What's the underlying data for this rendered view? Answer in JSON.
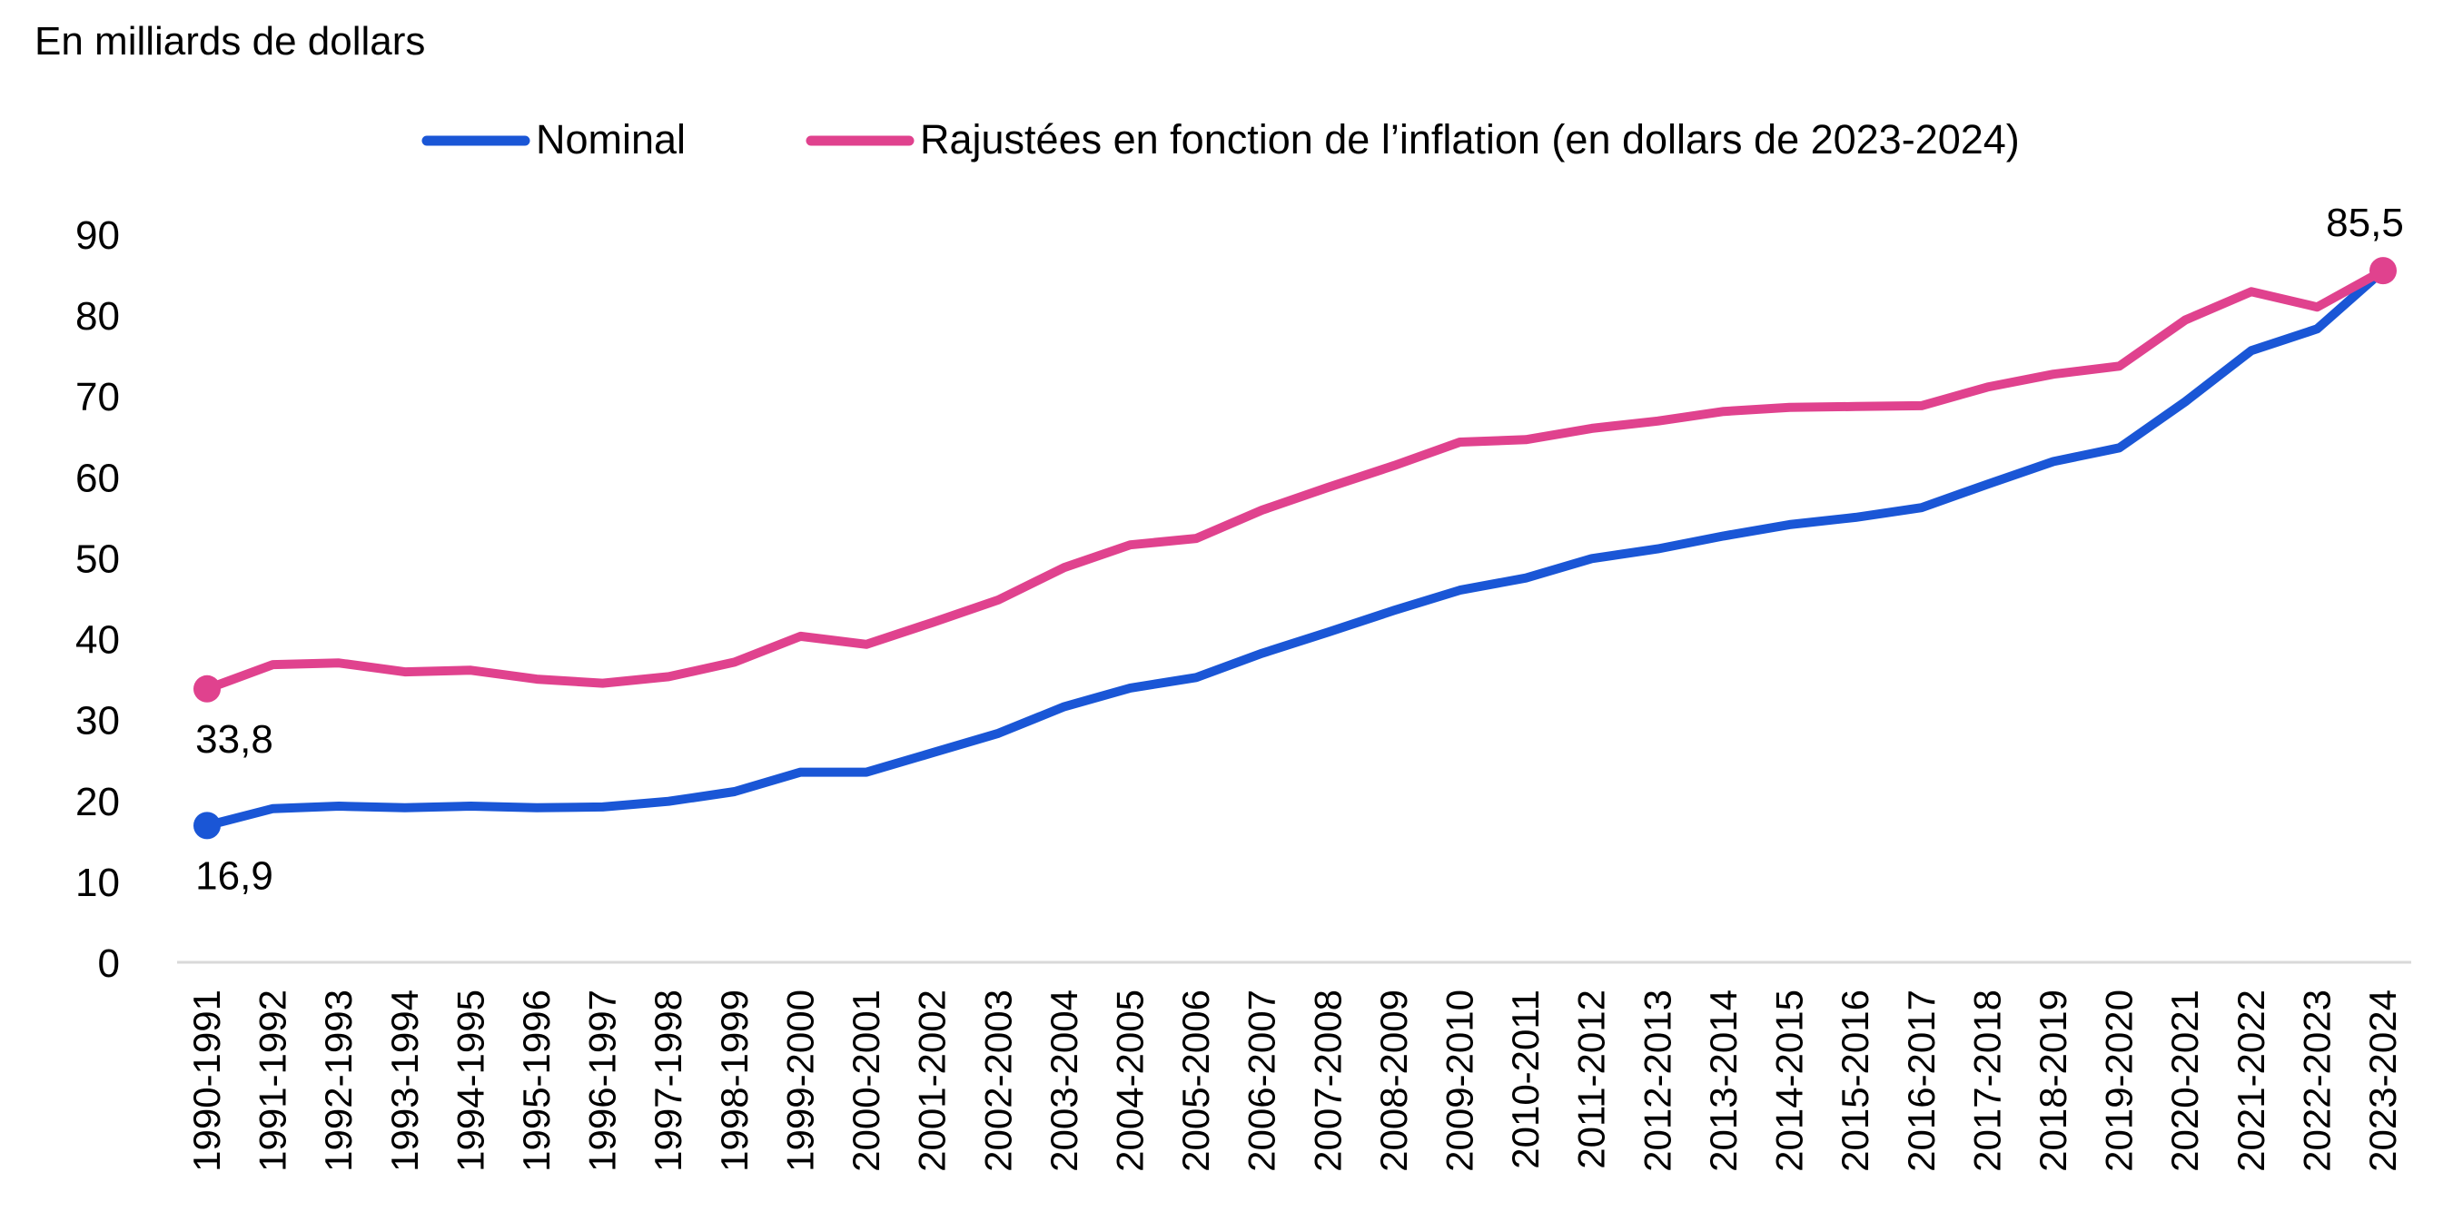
{
  "chart_data": {
    "type": "line",
    "ylabel": "En milliards de dollars",
    "ylim": [
      0,
      90
    ],
    "yticks": [
      0,
      10,
      20,
      30,
      40,
      50,
      60,
      70,
      80,
      90
    ],
    "grid": false,
    "legend_position": "top-center",
    "categories": [
      "1990-1991",
      "1991-1992",
      "1992-1993",
      "1993-1994",
      "1994-1995",
      "1995-1996",
      "1996-1997",
      "1997-1998",
      "1998-1999",
      "1999-2000",
      "2000-2001",
      "2001-2002",
      "2002-2003",
      "2003-2004",
      "2004-2005",
      "2005-2006",
      "2006-2007",
      "2007-2008",
      "2008-2009",
      "2009-2010",
      "2010-2011",
      "2011-2012",
      "2012-2013",
      "2013-2014",
      "2014-2015",
      "2015-2016",
      "2016-2017",
      "2017-2018",
      "2018-2019",
      "2019-2020",
      "2020-2021",
      "2021-2022",
      "2022-2023",
      "2023-2024"
    ],
    "series": [
      {
        "name": "Nominal",
        "color": "#1a56d6",
        "values": [
          16.9,
          19.0,
          19.3,
          19.1,
          19.3,
          19.1,
          19.2,
          19.9,
          21.1,
          23.5,
          23.5,
          25.9,
          28.3,
          31.6,
          33.9,
          35.2,
          38.2,
          40.8,
          43.5,
          46.0,
          47.5,
          49.9,
          51.1,
          52.7,
          54.1,
          55.0,
          56.2,
          59.1,
          61.9,
          63.6,
          69.3,
          75.6,
          78.3,
          85.5
        ],
        "point_labels": [
          {
            "index": 0,
            "text": "16,9",
            "position": "below"
          }
        ]
      },
      {
        "name": "Rajustées en fonction de l’inflation (en dollars de 2023-2024)",
        "color": "#e0428e",
        "values": [
          33.8,
          36.8,
          37.0,
          35.9,
          36.1,
          35.0,
          34.5,
          35.3,
          37.1,
          40.3,
          39.3,
          42.0,
          44.8,
          48.8,
          51.6,
          52.4,
          55.9,
          58.7,
          61.4,
          64.3,
          64.6,
          66.0,
          66.9,
          68.1,
          68.6,
          68.7,
          68.8,
          71.1,
          72.7,
          73.7,
          79.4,
          82.9,
          81.0,
          85.5
        ],
        "point_labels": [
          {
            "index": 0,
            "text": "33,8",
            "position": "below"
          },
          {
            "index": 33,
            "text": "85,5",
            "position": "above"
          }
        ]
      }
    ]
  }
}
